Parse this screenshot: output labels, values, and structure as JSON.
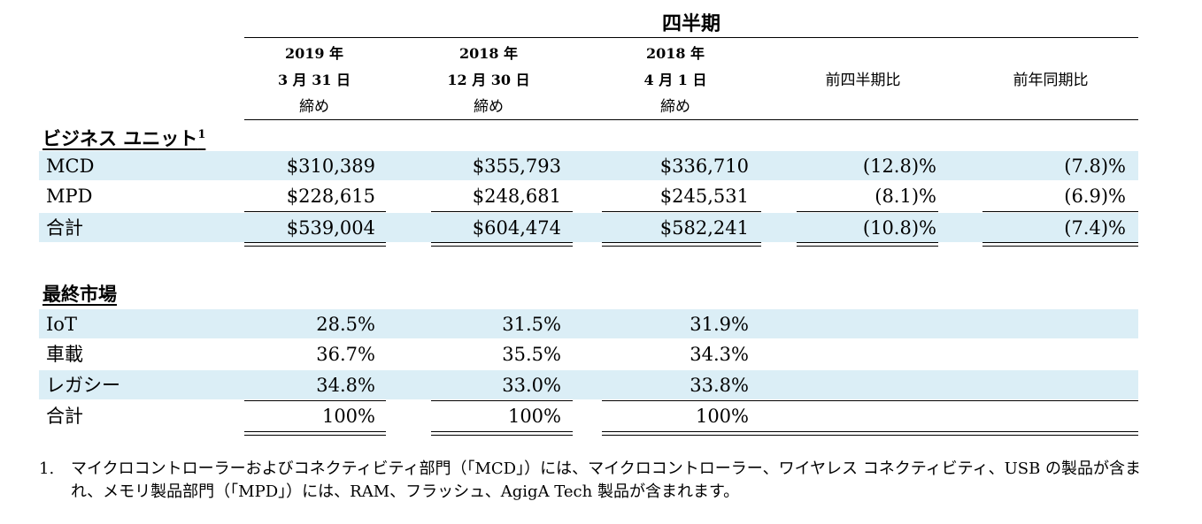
{
  "header": {
    "group_title": "四半期",
    "col1": {
      "year": "2019 年",
      "date": "3 月 31 日",
      "end": "締め"
    },
    "col2": {
      "year": "2018 年",
      "date": "12 月 30 日",
      "end": "締め"
    },
    "col3": {
      "year": "2018 年",
      "date": "4 月 1 日",
      "end": "締め"
    },
    "col4": "前四半期比",
    "col5": "前年同期比"
  },
  "business_units": {
    "title": "ビジネス ユニット",
    "footnote_mark": "1",
    "rows": [
      {
        "label": "MCD",
        "q1_2019": "$310,389",
        "q4_2018": "$355,793",
        "q1_2018": "$336,710",
        "qoq": "(12.8)%",
        "yoy": "(7.8)%"
      },
      {
        "label": "MPD",
        "q1_2019": "$228,615",
        "q4_2018": "$248,681",
        "q1_2018": "$245,531",
        "qoq": "(8.1)%",
        "yoy": "(6.9)%"
      },
      {
        "label": "合計",
        "q1_2019": "$539,004",
        "q4_2018": "$604,474",
        "q1_2018": "$582,241",
        "qoq": "(10.8)%",
        "yoy": "(7.4)%"
      }
    ]
  },
  "end_markets": {
    "title": "最終市場",
    "rows": [
      {
        "label": "IoT",
        "q1_2019": "28.5%",
        "q4_2018": "31.5%",
        "q1_2018": "31.9%"
      },
      {
        "label": "車載",
        "q1_2019": "36.7%",
        "q4_2018": "35.5%",
        "q1_2018": "34.3%"
      },
      {
        "label": "レガシー",
        "q1_2019": "34.8%",
        "q4_2018": "33.0%",
        "q1_2018": "33.8%"
      },
      {
        "label": "合計",
        "q1_2019": "100%",
        "q4_2018": "100%",
        "q1_2018": "100%"
      }
    ]
  },
  "footnote": {
    "number": "1.",
    "text": "マイクロコントローラーおよびコネクティビティ部門（「MCD」）には、マイクロコントローラー、ワイヤレス コネクティビティ、USB の製品が含まれ、メモリ製品部門（「MPD」）には、RAM、フラッシュ、AgigA Tech 製品が含まれます。"
  },
  "colors": {
    "band": "#dbeef6",
    "text": "#000000",
    "rule": "#000000"
  }
}
